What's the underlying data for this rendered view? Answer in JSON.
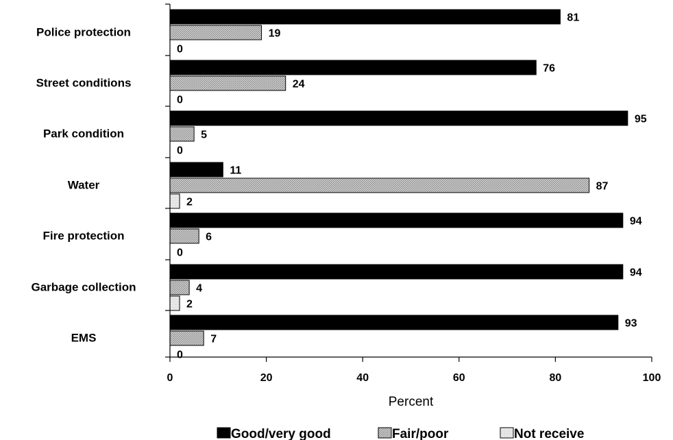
{
  "chart_data": {
    "type": "bar",
    "orientation": "horizontal",
    "categories": [
      "Police protection",
      "Street conditions",
      "Park condition",
      "Water",
      "Fire protection",
      "Garbage collection",
      "EMS"
    ],
    "series": [
      {
        "name": "Good/very good",
        "values": [
          81,
          76,
          95,
          11,
          94,
          94,
          93
        ],
        "color": "#000000",
        "pattern": "solid"
      },
      {
        "name": "Fair/poor",
        "values": [
          19,
          24,
          5,
          87,
          6,
          4,
          7
        ],
        "color": "#bdbdbd",
        "pattern": "hatched"
      },
      {
        "name": "Not receive",
        "values": [
          0,
          0,
          0,
          2,
          0,
          2,
          0
        ],
        "color": "#e0e0e0",
        "pattern": "light"
      }
    ],
    "xlabel": "Percent",
    "xlim": [
      0,
      100
    ],
    "xticks": [
      0,
      20,
      40,
      60,
      80,
      100
    ],
    "grid": false,
    "legend_position": "bottom"
  }
}
